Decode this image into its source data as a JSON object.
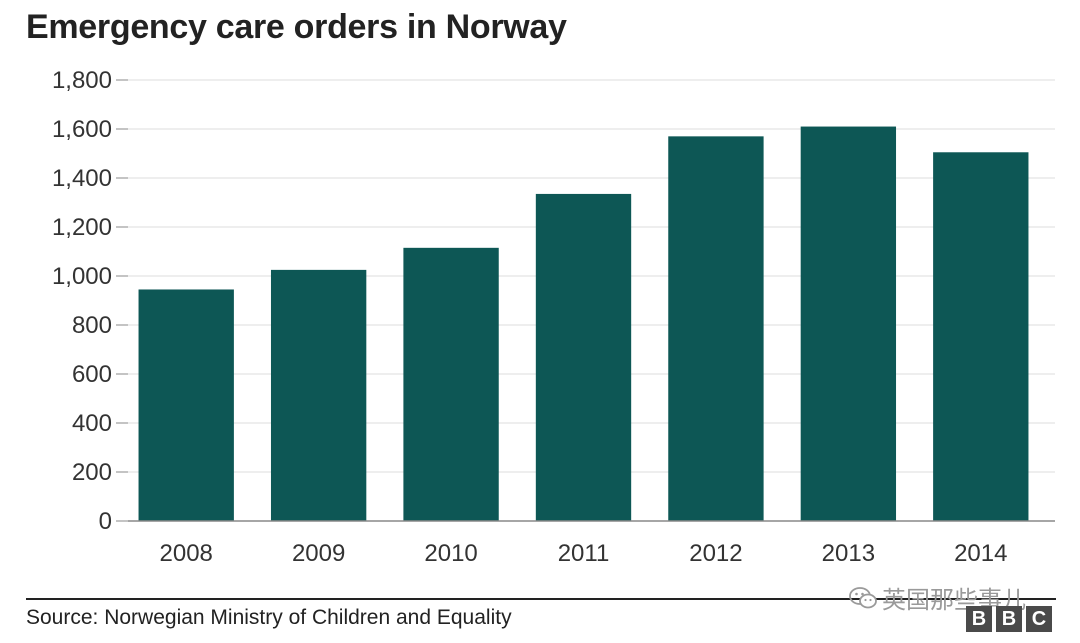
{
  "title": "Emergency care orders in Norway",
  "source": "Source: Norwegian Ministry of Children and Equality",
  "watermark": {
    "text": "英国那些事儿",
    "icon": "wechat-icon"
  },
  "logo": {
    "letters": [
      "B",
      "B",
      "C"
    ]
  },
  "colors": {
    "bar": "#0d5755",
    "grid": "#dddddd",
    "axis": "#888888"
  },
  "chart_data": {
    "type": "bar",
    "title": "Emergency care orders in Norway",
    "xlabel": "",
    "ylabel": "",
    "categories": [
      "2008",
      "2009",
      "2010",
      "2011",
      "2012",
      "2013",
      "2014"
    ],
    "values": [
      945,
      1025,
      1115,
      1335,
      1570,
      1610,
      1505
    ],
    "ylim": [
      0,
      1800
    ],
    "yticks": [
      0,
      200,
      400,
      600,
      800,
      1000,
      1200,
      1400,
      1600,
      1800
    ],
    "ytick_labels": [
      "0",
      "200",
      "400",
      "600",
      "800",
      "1,000",
      "1,200",
      "1,400",
      "1,600",
      "1,800"
    ],
    "grid": true,
    "legend": "none"
  }
}
